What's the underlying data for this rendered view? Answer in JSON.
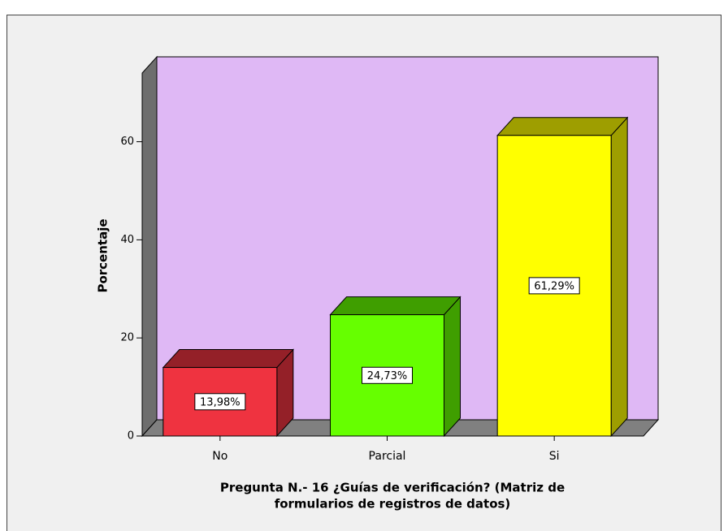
{
  "chart_data": {
    "type": "bar3d",
    "categories": [
      "No",
      "Parcial",
      "Si"
    ],
    "values": [
      13.98,
      24.73,
      61.29
    ],
    "value_labels": [
      "13,98%",
      "24,73%",
      "61,29%"
    ],
    "colors": [
      "#ef3340",
      "#66ff00",
      "#ffff00"
    ],
    "ylabel": "Porcentaje",
    "xlabel": [
      "Pregunta N.- 16 ¿Guías de verificación? (Matriz de",
      "formularios de registros de datos)"
    ],
    "ylim": [
      0,
      74
    ],
    "yticks": [
      0,
      20,
      40,
      60
    ],
    "wall_color": "#dfb8f5"
  }
}
